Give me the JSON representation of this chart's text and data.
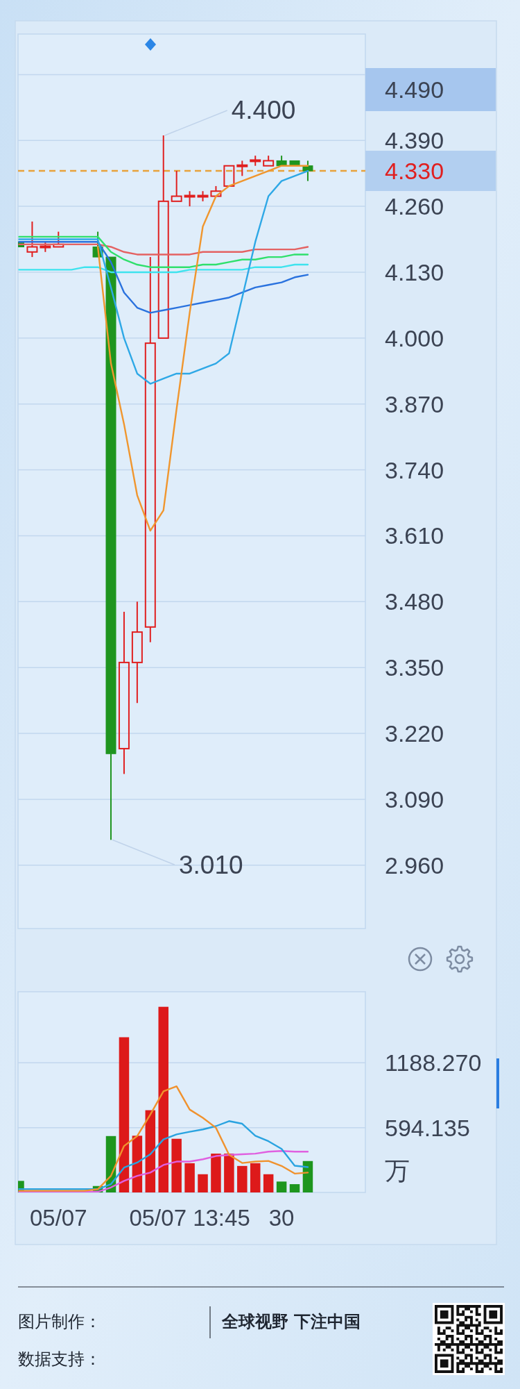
{
  "chart_data": [
    {
      "type": "candlestick",
      "categories": [
        null,
        null,
        null,
        null,
        null,
        null,
        null,
        null,
        null,
        null,
        null,
        null,
        null,
        null,
        null,
        null,
        null,
        null,
        null,
        null,
        null,
        null,
        null
      ],
      "ohlc": [
        [
          4.19,
          4.19,
          4.18,
          4.18
        ],
        [
          4.17,
          4.23,
          4.16,
          4.18
        ],
        [
          4.18,
          4.19,
          4.17,
          4.18
        ],
        [
          4.18,
          4.21,
          4.18,
          4.185
        ],
        null,
        null,
        [
          4.18,
          4.21,
          4.16,
          4.16
        ],
        [
          4.16,
          4.16,
          3.01,
          3.18
        ],
        [
          3.19,
          3.46,
          3.14,
          3.36
        ],
        [
          3.36,
          3.48,
          3.28,
          3.42
        ],
        [
          3.43,
          4.16,
          3.4,
          3.99
        ],
        [
          4.0,
          4.4,
          4.0,
          4.27
        ],
        [
          4.27,
          4.33,
          4.27,
          4.28
        ],
        [
          4.28,
          4.29,
          4.26,
          4.28
        ],
        [
          4.28,
          4.29,
          4.27,
          4.28
        ],
        [
          4.28,
          4.3,
          4.28,
          4.29
        ],
        [
          4.3,
          4.34,
          4.3,
          4.34
        ],
        [
          4.34,
          4.35,
          4.32,
          4.34
        ],
        [
          4.35,
          4.36,
          4.34,
          4.35
        ],
        [
          4.34,
          4.36,
          4.34,
          4.35
        ],
        [
          4.35,
          4.36,
          4.34,
          4.34
        ],
        [
          4.35,
          4.35,
          4.34,
          4.34
        ],
        [
          4.34,
          4.35,
          4.31,
          4.33
        ]
      ],
      "series": [
        {
          "type": "line",
          "color": "#3ee3ee",
          "values": [
            4.135,
            4.135,
            4.135,
            4.135,
            4.135,
            4.14,
            4.14,
            4.13,
            4.13,
            4.13,
            4.13,
            4.13,
            4.13,
            4.135,
            4.135,
            4.135,
            4.135,
            4.135,
            4.14,
            4.14,
            4.14,
            4.145,
            4.145
          ]
        },
        {
          "type": "line",
          "color": "#e46262",
          "values": [
            4.185,
            4.185,
            4.185,
            4.185,
            4.185,
            4.185,
            4.185,
            4.18,
            4.17,
            4.165,
            4.165,
            4.165,
            4.165,
            4.165,
            4.17,
            4.17,
            4.17,
            4.17,
            4.175,
            4.175,
            4.175,
            4.175,
            4.18
          ]
        },
        {
          "type": "line",
          "color": "#2a72de",
          "values": [
            4.19,
            4.19,
            4.19,
            4.19,
            4.19,
            4.19,
            4.19,
            4.15,
            4.09,
            4.06,
            4.05,
            4.055,
            4.06,
            4.065,
            4.07,
            4.075,
            4.08,
            4.09,
            4.1,
            4.105,
            4.11,
            4.12,
            4.125
          ]
        },
        {
          "type": "line",
          "color": "#2fe06c",
          "values": [
            4.2,
            4.2,
            4.2,
            4.2,
            4.2,
            4.2,
            4.2,
            4.17,
            4.155,
            4.145,
            4.14,
            4.14,
            4.14,
            4.14,
            4.145,
            4.145,
            4.15,
            4.155,
            4.155,
            4.16,
            4.16,
            4.165,
            4.165
          ]
        },
        {
          "type": "line",
          "color": "#2ea8e6",
          "values": [
            4.195,
            4.195,
            4.195,
            4.195,
            4.195,
            4.195,
            4.195,
            4.1,
            4.0,
            3.93,
            3.91,
            3.92,
            3.93,
            3.93,
            3.94,
            3.95,
            3.97,
            4.08,
            4.19,
            4.28,
            4.31,
            4.32,
            4.33
          ]
        },
        {
          "type": "line",
          "color": "#f0962e",
          "values": [
            null,
            null,
            null,
            null,
            null,
            null,
            4.18,
            3.95,
            3.83,
            3.69,
            3.62,
            3.66,
            3.86,
            4.05,
            4.22,
            4.28,
            4.3,
            4.31,
            4.32,
            4.33,
            4.34,
            4.34,
            4.34
          ]
        }
      ],
      "ylim": [
        2.835,
        4.6
      ],
      "yticks": [
        {
          "value": 2.96,
          "label": "2.960"
        },
        {
          "value": 3.09,
          "label": "3.090"
        },
        {
          "value": 3.22,
          "label": "3.220"
        },
        {
          "value": 3.35,
          "label": "3.350"
        },
        {
          "value": 3.48,
          "label": "3.480"
        },
        {
          "value": 3.61,
          "label": "3.610"
        },
        {
          "value": 3.74,
          "label": "3.740"
        },
        {
          "value": 3.87,
          "label": "3.870"
        },
        {
          "value": 4,
          "label": "4.000"
        },
        {
          "value": 4.13,
          "label": "4.130"
        },
        {
          "value": 4.26,
          "label": "4.260"
        },
        {
          "value": 4.39,
          "label": "4.390"
        },
        {
          "value": 4.52,
          "label": null
        }
      ],
      "grid": "y",
      "tick_labels": "y",
      "ref_lines": [
        {
          "axis": "y",
          "value": 4.33,
          "label": "4.330",
          "color": "#e8a23c",
          "line_style": "dashed"
        }
      ],
      "annotations": [
        "4.400",
        "3.010",
        "4.490"
      ]
    },
    {
      "type": "bar",
      "categories": [
        null,
        null,
        null,
        "05/07",
        null,
        null,
        null,
        null,
        null,
        null,
        null,
        null,
        null,
        "05/07 13:45",
        null,
        null,
        null,
        null,
        null,
        null,
        "30",
        null,
        null
      ],
      "series": [
        {
          "values": [
            106,
            null,
            null,
            null,
            null,
            null,
            59,
            517,
            1423,
            520,
            754,
            1702,
            492,
            268,
            167,
            356,
            356,
            243,
            268,
            167,
            100,
            76,
            288
          ],
          "colors": [
            "#1e961e",
            null,
            null,
            null,
            null,
            null,
            "#1e961e",
            "#1e961e",
            "#dd1a1a",
            "#dd1a1a",
            "#dd1a1a",
            "#dd1a1a",
            "#dd1a1a",
            "#dd1a1a",
            "#dd1a1a",
            "#dd1a1a",
            "#dd1a1a",
            "#dd1a1a",
            "#dd1a1a",
            "#dd1a1a",
            "#1e961e",
            "#1e961e",
            "#1e961e"
          ]
        },
        {
          "type": "line",
          "color": "#e060e0",
          "values": [
            6,
            6,
            6,
            6,
            6,
            6,
            6,
            46,
            106,
            152,
            182,
            252,
            283,
            283,
            304,
            334,
            344,
            350,
            356,
            374,
            380,
            374,
            374
          ]
        },
        {
          "type": "line",
          "color": "#29a3e0",
          "values": [
            30,
            30,
            30,
            30,
            30,
            30,
            30,
            76,
            228,
            274,
            350,
            486,
            532,
            556,
            578,
            608,
            654,
            630,
            520,
            470,
            400,
            245,
            232
          ]
        },
        {
          "type": "line",
          "color": "#f0922e",
          "values": [
            15,
            15,
            15,
            15,
            15,
            15,
            30,
            152,
            426,
            517,
            714,
            927,
            973,
            760,
            684,
            593,
            345,
            270,
            283,
            289,
            243,
            173,
            182
          ]
        }
      ],
      "ylim": [
        0,
        1840
      ],
      "yticks": [
        594.135,
        {
          "value": 1188.27,
          "label": "1188.270"
        }
      ],
      "ylabel": "万",
      "grid": "y",
      "annotations": [
        "图片制作：",
        "全球视野 下注中国",
        "数据支持："
      ]
    }
  ]
}
